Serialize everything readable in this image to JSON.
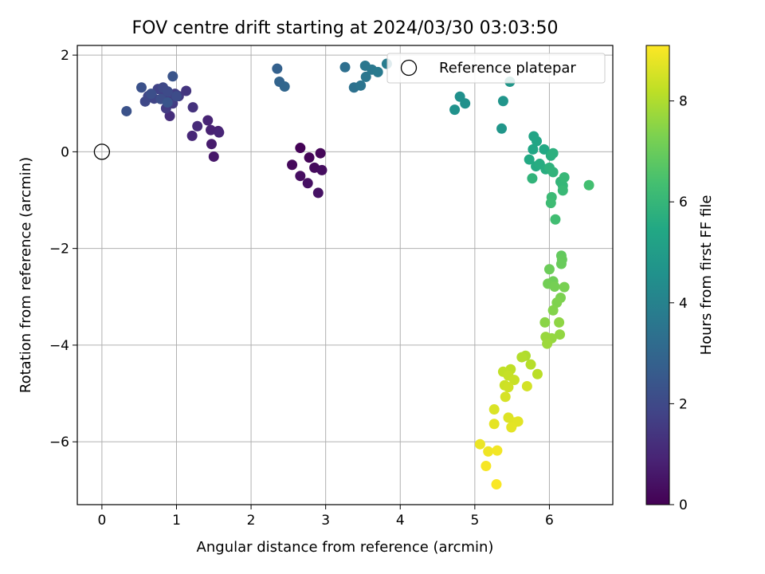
{
  "chart_data": {
    "type": "scatter",
    "title": "FOV centre drift starting at 2024/03/30 03:03:50",
    "xlabel": "Angular distance from reference (arcmin)",
    "ylabel": "Rotation from reference (arcmin)",
    "xlim": [
      -0.33,
      6.85
    ],
    "ylim": [
      -7.3,
      2.2
    ],
    "xticks": [
      0,
      1,
      2,
      3,
      4,
      5,
      6
    ],
    "yticks": [
      -6,
      -4,
      -2,
      0,
      2
    ],
    "grid": true,
    "legend": {
      "label": "Reference platepar",
      "position": "top-right"
    },
    "reference_point": {
      "x": 0,
      "y": 0
    },
    "colorbar": {
      "label": "Hours from first FF file",
      "min": 0,
      "max": 9.1,
      "ticks": [
        0,
        2,
        4,
        6,
        8
      ],
      "colormap": "viridis"
    },
    "points": [
      {
        "x": 2.66,
        "y": 0.08,
        "hours": 0.05
      },
      {
        "x": 2.78,
        "y": -0.12,
        "hours": 0.1
      },
      {
        "x": 2.93,
        "y": -0.03,
        "hours": 0.15
      },
      {
        "x": 2.55,
        "y": -0.27,
        "hours": 0.2
      },
      {
        "x": 2.85,
        "y": -0.33,
        "hours": 0.25
      },
      {
        "x": 2.95,
        "y": -0.38,
        "hours": 0.3
      },
      {
        "x": 2.66,
        "y": -0.5,
        "hours": 0.35
      },
      {
        "x": 2.76,
        "y": -0.65,
        "hours": 0.4
      },
      {
        "x": 2.9,
        "y": -0.85,
        "hours": 0.45
      },
      {
        "x": 1.5,
        "y": -0.1,
        "hours": 0.6
      },
      {
        "x": 1.47,
        "y": 0.16,
        "hours": 0.7
      },
      {
        "x": 1.56,
        "y": 0.43,
        "hours": 0.8
      },
      {
        "x": 1.46,
        "y": 0.45,
        "hours": 0.85
      },
      {
        "x": 1.42,
        "y": 0.65,
        "hours": 0.9
      },
      {
        "x": 1.57,
        "y": 0.4,
        "hours": 0.95
      },
      {
        "x": 1.21,
        "y": 0.33,
        "hours": 1.0
      },
      {
        "x": 1.28,
        "y": 0.53,
        "hours": 1.1
      },
      {
        "x": 0.91,
        "y": 0.74,
        "hours": 1.2
      },
      {
        "x": 1.22,
        "y": 0.92,
        "hours": 1.3
      },
      {
        "x": 1.13,
        "y": 1.26,
        "hours": 1.4
      },
      {
        "x": 1.03,
        "y": 1.15,
        "hours": 1.5
      },
      {
        "x": 0.95,
        "y": 1.0,
        "hours": 1.55
      },
      {
        "x": 0.86,
        "y": 0.9,
        "hours": 1.6
      },
      {
        "x": 0.98,
        "y": 1.2,
        "hours": 1.65
      },
      {
        "x": 0.92,
        "y": 1.05,
        "hours": 1.7
      },
      {
        "x": 0.83,
        "y": 1.18,
        "hours": 1.75
      },
      {
        "x": 0.75,
        "y": 1.3,
        "hours": 1.8
      },
      {
        "x": 0.7,
        "y": 1.1,
        "hours": 1.85
      },
      {
        "x": 0.62,
        "y": 1.15,
        "hours": 1.9
      },
      {
        "x": 0.58,
        "y": 1.04,
        "hours": 1.95
      },
      {
        "x": 0.82,
        "y": 1.33,
        "hours": 2.0
      },
      {
        "x": 0.88,
        "y": 1.25,
        "hours": 2.05
      },
      {
        "x": 1.0,
        "y": 1.15,
        "hours": 2.1
      },
      {
        "x": 0.79,
        "y": 1.09,
        "hours": 2.15
      },
      {
        "x": 0.66,
        "y": 1.2,
        "hours": 2.2
      },
      {
        "x": 0.53,
        "y": 1.33,
        "hours": 2.25
      },
      {
        "x": 0.33,
        "y": 0.84,
        "hours": 2.3
      },
      {
        "x": 0.95,
        "y": 1.56,
        "hours": 2.35
      },
      {
        "x": 0.88,
        "y": 1.02,
        "hours": 2.4
      },
      {
        "x": 2.35,
        "y": 1.72,
        "hours": 2.8
      },
      {
        "x": 2.38,
        "y": 1.45,
        "hours": 2.9
      },
      {
        "x": 2.45,
        "y": 1.35,
        "hours": 3.0
      },
      {
        "x": 3.26,
        "y": 1.75,
        "hours": 3.3
      },
      {
        "x": 3.38,
        "y": 1.33,
        "hours": 3.4
      },
      {
        "x": 3.47,
        "y": 1.37,
        "hours": 3.5
      },
      {
        "x": 3.54,
        "y": 1.55,
        "hours": 3.55
      },
      {
        "x": 3.53,
        "y": 1.78,
        "hours": 3.6
      },
      {
        "x": 3.62,
        "y": 1.7,
        "hours": 3.65
      },
      {
        "x": 3.7,
        "y": 1.65,
        "hours": 3.7
      },
      {
        "x": 3.82,
        "y": 1.82,
        "hours": 3.8
      },
      {
        "x": 4.8,
        "y": 1.14,
        "hours": 4.5
      },
      {
        "x": 4.87,
        "y": 1.0,
        "hours": 4.55
      },
      {
        "x": 4.73,
        "y": 0.87,
        "hours": 4.6
      },
      {
        "x": 5.38,
        "y": 1.05,
        "hours": 4.7
      },
      {
        "x": 5.36,
        "y": 0.48,
        "hours": 4.75
      },
      {
        "x": 5.47,
        "y": 1.45,
        "hours": 4.8
      },
      {
        "x": 5.79,
        "y": 0.32,
        "hours": 5.3
      },
      {
        "x": 5.83,
        "y": 0.22,
        "hours": 5.35
      },
      {
        "x": 5.78,
        "y": 0.05,
        "hours": 5.4
      },
      {
        "x": 5.93,
        "y": 0.05,
        "hours": 5.45
      },
      {
        "x": 5.73,
        "y": -0.16,
        "hours": 5.5
      },
      {
        "x": 5.82,
        "y": -0.3,
        "hours": 5.55
      },
      {
        "x": 5.87,
        "y": -0.25,
        "hours": 5.6
      },
      {
        "x": 5.95,
        "y": -0.36,
        "hours": 5.65
      },
      {
        "x": 6.02,
        "y": -0.08,
        "hours": 5.7
      },
      {
        "x": 6.05,
        "y": -0.03,
        "hours": 5.75
      },
      {
        "x": 6.0,
        "y": -0.33,
        "hours": 5.8
      },
      {
        "x": 6.05,
        "y": -0.42,
        "hours": 5.85
      },
      {
        "x": 5.77,
        "y": -0.55,
        "hours": 5.9
      },
      {
        "x": 6.15,
        "y": -0.62,
        "hours": 5.95
      },
      {
        "x": 6.18,
        "y": -0.7,
        "hours": 6.0
      },
      {
        "x": 6.2,
        "y": -0.53,
        "hours": 6.05
      },
      {
        "x": 6.18,
        "y": -0.8,
        "hours": 6.1
      },
      {
        "x": 6.03,
        "y": -0.94,
        "hours": 6.15
      },
      {
        "x": 6.02,
        "y": -1.06,
        "hours": 6.2
      },
      {
        "x": 6.08,
        "y": -1.4,
        "hours": 6.3
      },
      {
        "x": 6.53,
        "y": -0.69,
        "hours": 6.35
      },
      {
        "x": 6.16,
        "y": -2.15,
        "hours": 6.9
      },
      {
        "x": 6.17,
        "y": -2.23,
        "hours": 6.95
      },
      {
        "x": 6.16,
        "y": -2.32,
        "hours": 7.0
      },
      {
        "x": 6.0,
        "y": -2.43,
        "hours": 7.05
      },
      {
        "x": 6.05,
        "y": -2.68,
        "hours": 7.1
      },
      {
        "x": 5.98,
        "y": -2.73,
        "hours": 7.15
      },
      {
        "x": 6.07,
        "y": -2.79,
        "hours": 7.2
      },
      {
        "x": 6.2,
        "y": -2.8,
        "hours": 7.25
      },
      {
        "x": 6.15,
        "y": -3.02,
        "hours": 7.3
      },
      {
        "x": 6.1,
        "y": -3.12,
        "hours": 7.35
      },
      {
        "x": 6.05,
        "y": -3.28,
        "hours": 7.4
      },
      {
        "x": 5.94,
        "y": -3.53,
        "hours": 7.5
      },
      {
        "x": 6.13,
        "y": -3.53,
        "hours": 7.55
      },
      {
        "x": 6.14,
        "y": -3.78,
        "hours": 7.6
      },
      {
        "x": 6.03,
        "y": -3.86,
        "hours": 7.65
      },
      {
        "x": 5.95,
        "y": -3.83,
        "hours": 7.7
      },
      {
        "x": 5.97,
        "y": -3.97,
        "hours": 7.75
      },
      {
        "x": 5.68,
        "y": -4.22,
        "hours": 8.0
      },
      {
        "x": 5.63,
        "y": -4.25,
        "hours": 8.05
      },
      {
        "x": 5.75,
        "y": -4.4,
        "hours": 8.1
      },
      {
        "x": 5.84,
        "y": -4.6,
        "hours": 8.15
      },
      {
        "x": 5.48,
        "y": -4.5,
        "hours": 8.2
      },
      {
        "x": 5.38,
        "y": -4.55,
        "hours": 8.25
      },
      {
        "x": 5.45,
        "y": -4.63,
        "hours": 8.3
      },
      {
        "x": 5.53,
        "y": -4.72,
        "hours": 8.35
      },
      {
        "x": 5.4,
        "y": -4.83,
        "hours": 8.4
      },
      {
        "x": 5.45,
        "y": -4.87,
        "hours": 8.45
      },
      {
        "x": 5.7,
        "y": -4.85,
        "hours": 8.5
      },
      {
        "x": 5.41,
        "y": -5.07,
        "hours": 8.55
      },
      {
        "x": 5.26,
        "y": -5.33,
        "hours": 8.6
      },
      {
        "x": 5.45,
        "y": -5.5,
        "hours": 8.65
      },
      {
        "x": 5.53,
        "y": -5.6,
        "hours": 8.7
      },
      {
        "x": 5.58,
        "y": -5.58,
        "hours": 8.72
      },
      {
        "x": 5.49,
        "y": -5.7,
        "hours": 8.74
      },
      {
        "x": 5.26,
        "y": -5.63,
        "hours": 8.76
      },
      {
        "x": 5.07,
        "y": -6.05,
        "hours": 8.85
      },
      {
        "x": 5.18,
        "y": -6.2,
        "hours": 8.9
      },
      {
        "x": 5.3,
        "y": -6.18,
        "hours": 8.95
      },
      {
        "x": 5.15,
        "y": -6.5,
        "hours": 9.0
      },
      {
        "x": 5.29,
        "y": -6.88,
        "hours": 9.05
      }
    ]
  }
}
